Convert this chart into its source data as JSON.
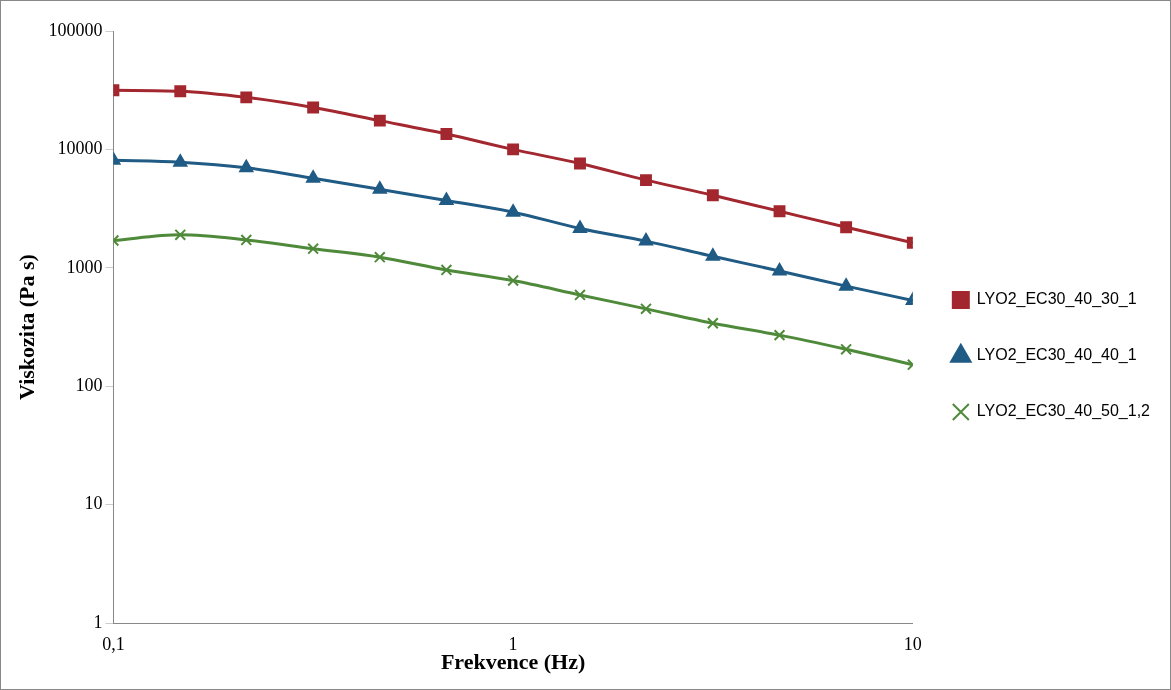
{
  "chart_data": {
    "type": "line",
    "xlabel": "Frekvence (Hz)",
    "ylabel": "Viskozita (Pa s)",
    "log": "xy",
    "x": [
      0.1,
      0.147,
      0.215,
      0.316,
      0.464,
      0.681,
      1,
      1.47,
      2.15,
      3.16,
      4.64,
      6.81,
      10
    ],
    "xlim": [
      0.1,
      10
    ],
    "xticks": [
      {
        "value": 0.1,
        "label": "0,1"
      },
      1,
      10
    ],
    "ylim": [
      1,
      100000
    ],
    "yticks": [
      1,
      10,
      100,
      1000,
      10000,
      100000
    ],
    "grid": false,
    "legend": "right",
    "line_style": "solid",
    "series": [
      {
        "name": "LYO2_EC30_40_30_1",
        "color": "#a3272f",
        "marker": "square",
        "values": [
          31600,
          31000,
          27500,
          22600,
          17500,
          13500,
          10000,
          7600,
          5500,
          4100,
          3000,
          2200,
          1630
        ]
      },
      {
        "name": "LYO2_EC30_40_40_1",
        "color": "#1f5b84",
        "marker": "triangle",
        "values": [
          8100,
          7800,
          7000,
          5700,
          4600,
          3700,
          2950,
          2150,
          1680,
          1250,
          940,
          700,
          530
        ]
      },
      {
        "name": "LYO2_EC30_40_50_1,2",
        "color": "#4e8a3a",
        "marker": "cross",
        "values": [
          1700,
          1900,
          1720,
          1450,
          1230,
          960,
          780,
          590,
          450,
          340,
          270,
          205,
          152
        ]
      }
    ]
  }
}
